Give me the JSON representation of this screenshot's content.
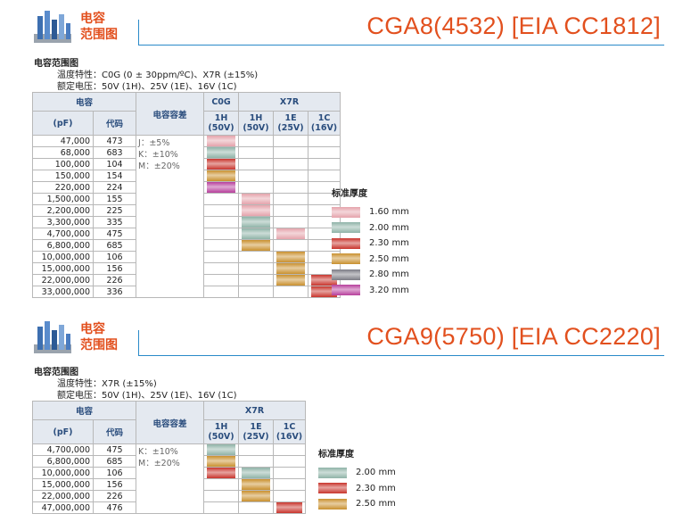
{
  "colors": {
    "t160": "#e5a3ab",
    "t200": "#8fb3a7",
    "t230": "#c8342c",
    "t250": "#c9902e",
    "t280": "#7b7b84",
    "t320": "#b73f9c",
    "accent": "#e2501e",
    "rule": "#2a8ac9"
  },
  "icon": "capacitor-range-logo",
  "section1": {
    "label_line1": "电容",
    "label_line2": "范围图",
    "title": "CGA8(4532) [EIA CC1812]",
    "subtitle": "电容范围图",
    "temp_label": "温度特性：",
    "temp_value": "C0G (0 ± 30ppm/ºC)、X7R (±15%)",
    "volt_label": "额定电压：",
    "volt_value": "50V (1H)、25V (1E)、16V (1C)",
    "hdr_cap": "电容",
    "hdr_pf": "(pF)",
    "hdr_code": "代码",
    "hdr_tol": "电容容差",
    "hdr_group1": "C0G",
    "hdr_group2": "X7R",
    "cols": [
      {
        "l1": "1H",
        "l2": "(50V)"
      },
      {
        "l1": "1H",
        "l2": "(50V)"
      },
      {
        "l1": "1E",
        "l2": "(25V)"
      },
      {
        "l1": "1C",
        "l2": "(16V)"
      }
    ],
    "tolerances": [
      "J：±5%",
      "K：±10%",
      "M：±20%"
    ],
    "rows": [
      {
        "pf": "47,000",
        "code": "473",
        "cells": [
          "t160",
          "",
          "",
          ""
        ]
      },
      {
        "pf": "68,000",
        "code": "683",
        "cells": [
          "t200",
          "",
          "",
          ""
        ]
      },
      {
        "pf": "100,000",
        "code": "104",
        "cells": [
          "t230",
          "",
          "",
          ""
        ]
      },
      {
        "pf": "150,000",
        "code": "154",
        "cells": [
          "t250",
          "",
          "",
          ""
        ]
      },
      {
        "pf": "220,000",
        "code": "224",
        "cells": [
          "t320",
          "",
          "",
          ""
        ]
      },
      {
        "pf": "1,500,000",
        "code": "155",
        "cells": [
          "",
          "t160",
          "",
          ""
        ]
      },
      {
        "pf": "2,200,000",
        "code": "225",
        "cells": [
          "",
          "t160",
          "",
          ""
        ]
      },
      {
        "pf": "3,300,000",
        "code": "335",
        "cells": [
          "",
          "t200",
          "",
          ""
        ]
      },
      {
        "pf": "4,700,000",
        "code": "475",
        "cells": [
          "",
          "t200",
          "t160",
          ""
        ]
      },
      {
        "pf": "6,800,000",
        "code": "685",
        "cells": [
          "",
          "t250",
          "",
          ""
        ]
      },
      {
        "pf": "10,000,000",
        "code": "106",
        "cells": [
          "",
          "",
          "t250",
          ""
        ]
      },
      {
        "pf": "15,000,000",
        "code": "156",
        "cells": [
          "",
          "",
          "t250",
          ""
        ]
      },
      {
        "pf": "22,000,000",
        "code": "226",
        "cells": [
          "",
          "",
          "t250",
          "t230"
        ]
      },
      {
        "pf": "33,000,000",
        "code": "336",
        "cells": [
          "",
          "",
          "",
          "t230"
        ]
      }
    ],
    "legend_title": "标准厚度",
    "legend": [
      {
        "color": "t160",
        "label": "1.60 mm"
      },
      {
        "color": "t200",
        "label": "2.00 mm"
      },
      {
        "color": "t230",
        "label": "2.30 mm"
      },
      {
        "color": "t250",
        "label": "2.50 mm"
      },
      {
        "color": "t280",
        "label": "2.80 mm"
      },
      {
        "color": "t320",
        "label": "3.20 mm"
      }
    ]
  },
  "section2": {
    "label_line1": "电容",
    "label_line2": "范围图",
    "title": "CGA9(5750) [EIA CC2220]",
    "subtitle": "电容范围图",
    "temp_label": "温度特性：",
    "temp_value": "X7R (±15%)",
    "volt_label": "额定电压：",
    "volt_value": "50V (1H)、25V (1E)、16V (1C)",
    "hdr_cap": "电容",
    "hdr_pf": "(pF)",
    "hdr_code": "代码",
    "hdr_tol": "电容容差",
    "hdr_group1": "X7R",
    "cols": [
      {
        "l1": "1H",
        "l2": "(50V)"
      },
      {
        "l1": "1E",
        "l2": "(25V)"
      },
      {
        "l1": "1C",
        "l2": "(16V)"
      }
    ],
    "tolerances": [
      "K：±10%",
      "M：±20%"
    ],
    "rows": [
      {
        "pf": "4,700,000",
        "code": "475",
        "cells": [
          "t200",
          "",
          ""
        ]
      },
      {
        "pf": "6,800,000",
        "code": "685",
        "cells": [
          "t250",
          "",
          ""
        ]
      },
      {
        "pf": "10,000,000",
        "code": "106",
        "cells": [
          "t230",
          "t200",
          ""
        ]
      },
      {
        "pf": "15,000,000",
        "code": "156",
        "cells": [
          "",
          "t250",
          ""
        ]
      },
      {
        "pf": "22,000,000",
        "code": "226",
        "cells": [
          "",
          "t250",
          ""
        ]
      },
      {
        "pf": "47,000,000",
        "code": "476",
        "cells": [
          "",
          "",
          "t230"
        ]
      }
    ],
    "legend_title": "标准厚度",
    "legend": [
      {
        "color": "t200",
        "label": "2.00 mm"
      },
      {
        "color": "t230",
        "label": "2.30 mm"
      },
      {
        "color": "t250",
        "label": "2.50 mm"
      }
    ]
  }
}
